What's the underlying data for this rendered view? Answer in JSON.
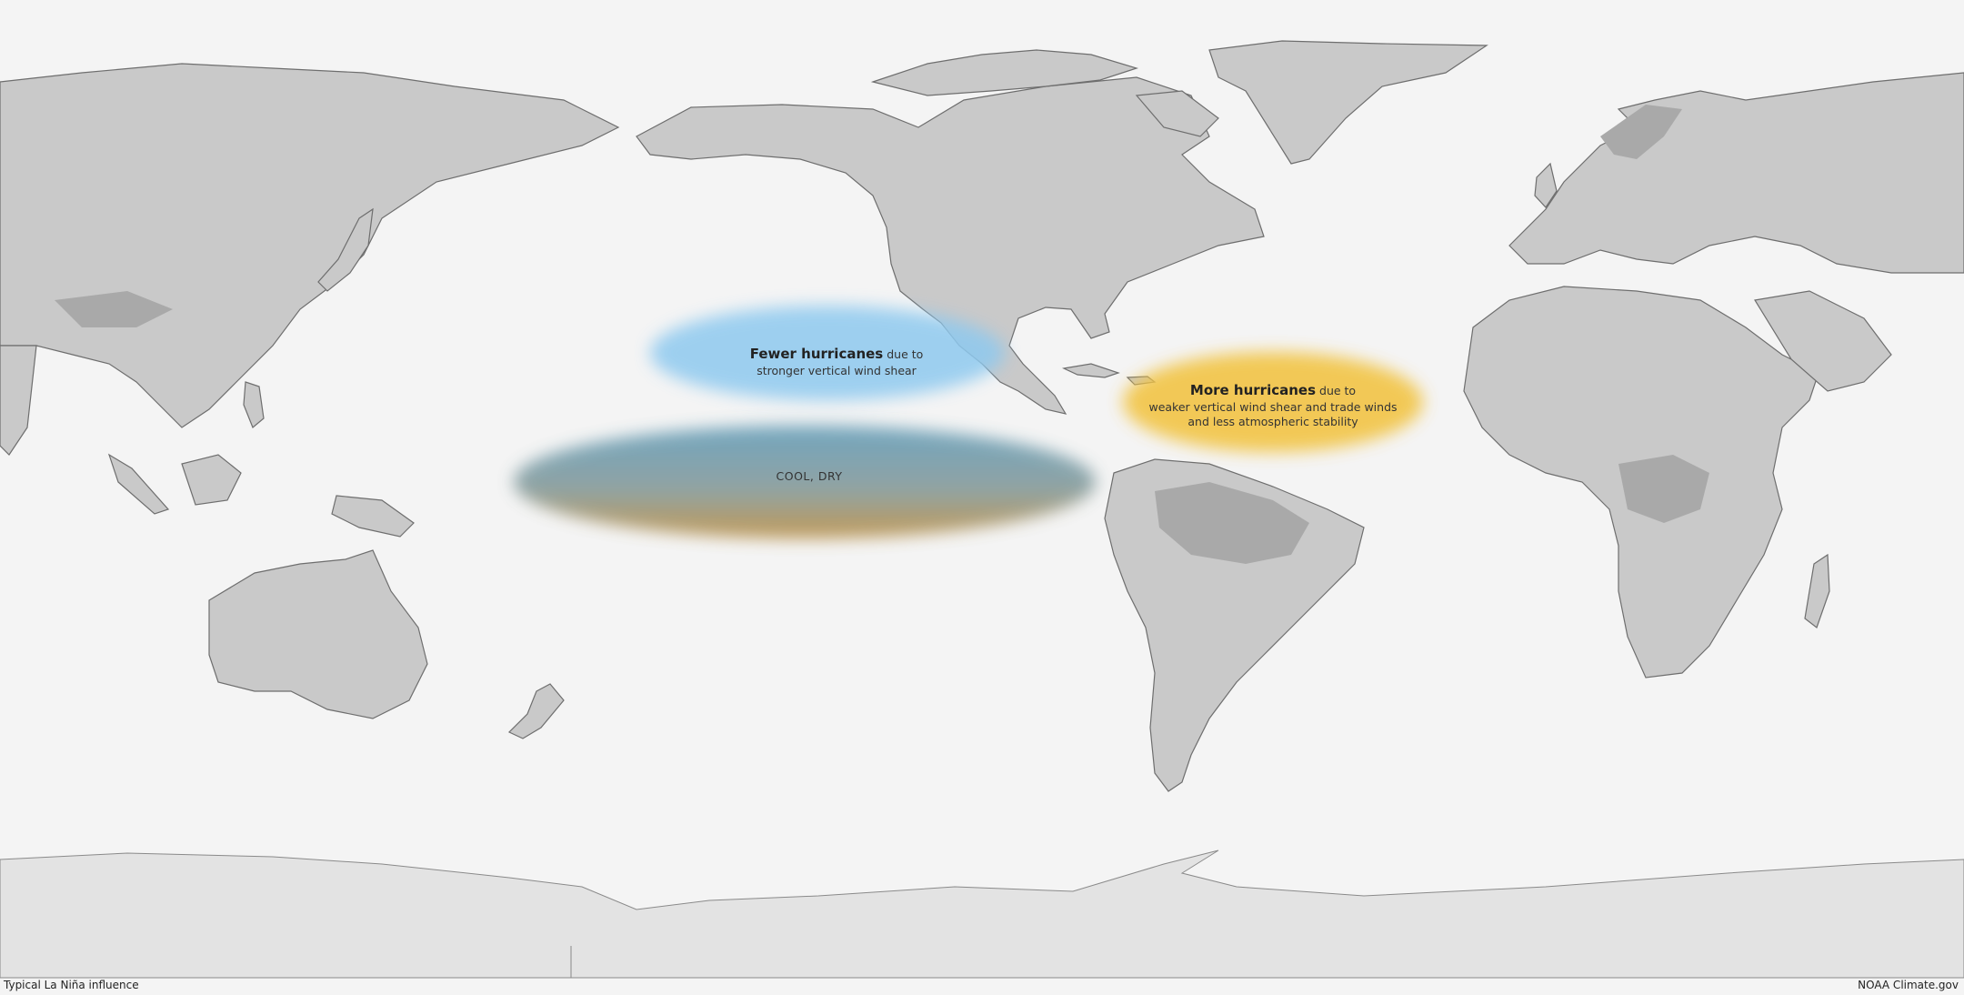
{
  "map": {
    "title": "Typical La Niña influence",
    "credit": "NOAA Climate.gov",
    "regions": [
      {
        "id": "fewer",
        "headline": "Fewer hurricanes",
        "suffix": " due to",
        "detail": "stronger vertical wind shear",
        "color": "#8ec9ef"
      },
      {
        "id": "more",
        "headline": "More hurricanes",
        "suffix": " due to",
        "detail": "weaker vertical wind shear and trade winds",
        "detail2": "and less atmospheric stability",
        "color": "#f2c445"
      },
      {
        "id": "cool",
        "label": "COOL, DRY",
        "color_top": "#5b98b5",
        "color_bottom": "#b88a3a"
      }
    ]
  }
}
